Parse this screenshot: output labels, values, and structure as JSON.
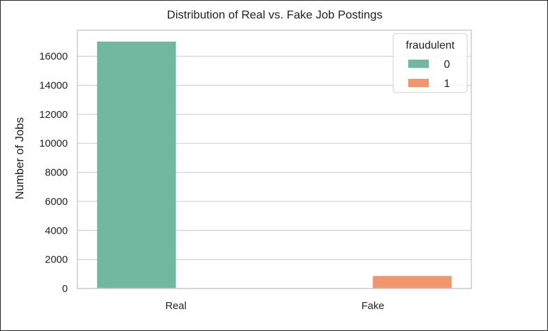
{
  "chart_data": {
    "type": "bar",
    "title": "Distribution of Real vs. Fake Job Postings",
    "xlabel": "",
    "ylabel": "Number of Jobs",
    "categories": [
      "Real",
      "Fake"
    ],
    "ylim": [
      0,
      17800
    ],
    "yticks": [
      0,
      2000,
      4000,
      6000,
      8000,
      10000,
      12000,
      14000,
      16000
    ],
    "grid": true,
    "legend": {
      "title": "fraudulent",
      "placement": "top-right"
    },
    "series": [
      {
        "name": "0",
        "color": "#72b8a0",
        "values": [
          17014,
          0
        ]
      },
      {
        "name": "1",
        "color": "#f0976e",
        "values": [
          0,
          866
        ]
      }
    ]
  }
}
